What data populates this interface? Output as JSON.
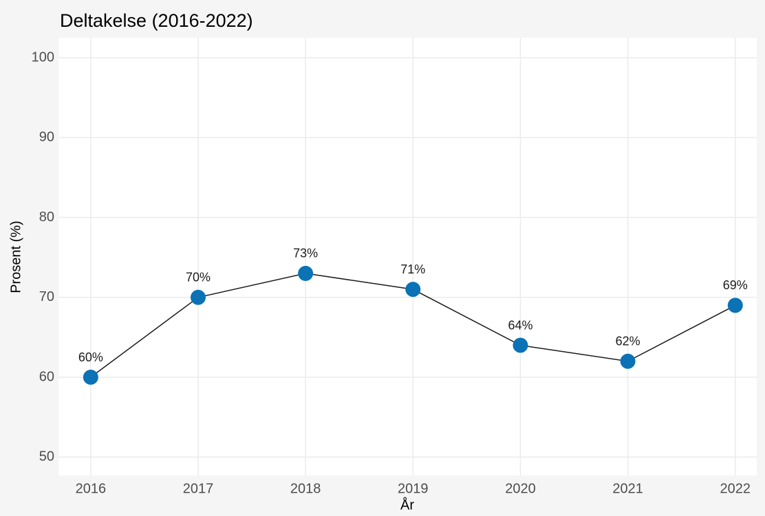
{
  "chart_data": {
    "type": "line",
    "title": "Deltakelse (2016-2022)",
    "x_label": "År",
    "y_label": "Prosent (%)",
    "x": [
      2016,
      2017,
      2018,
      2019,
      2020,
      2021,
      2022
    ],
    "series": [
      {
        "name": "Deltakelse",
        "color": "#0a72b5",
        "line_color": "#1a1a1a",
        "values": [
          60,
          70,
          73,
          71,
          64,
          62,
          69
        ],
        "value_labels": [
          "60%",
          "70%",
          "73%",
          "71%",
          "64%",
          "62%",
          "69%"
        ]
      }
    ],
    "xlim": [
      2015.7,
      2022.2
    ],
    "xticks": [
      2016,
      2017,
      2018,
      2019,
      2020,
      2021,
      2022
    ],
    "ylim": [
      47.7,
      102.5
    ],
    "yticks": [
      50,
      60,
      70,
      80,
      90,
      100
    ],
    "grid": true
  }
}
